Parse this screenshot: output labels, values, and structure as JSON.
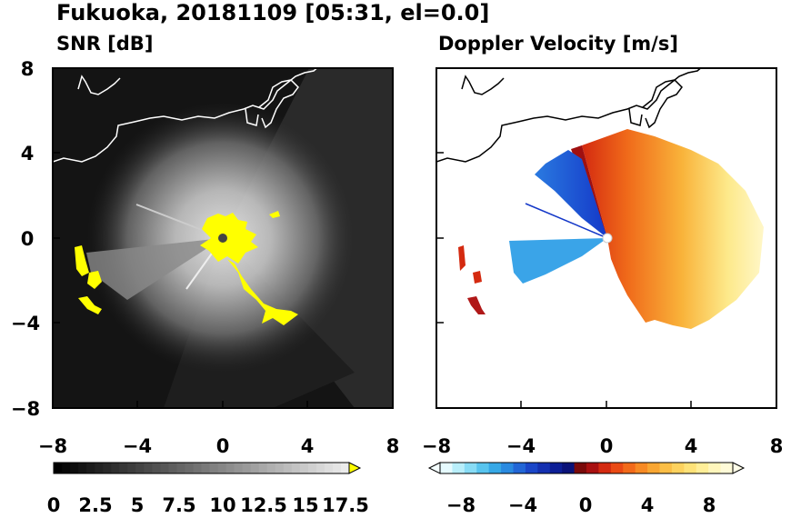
{
  "header": {
    "title": "Fukuoka, 20181109 [05:31, el=0.0]"
  },
  "panels": [
    {
      "title": "SNR [dB]"
    },
    {
      "title": "Doppler Velocity [m/s]"
    }
  ],
  "colors": {
    "background_left": "#111111",
    "coastline_left": "#ffffff",
    "coastline_right": "#000000",
    "snr_high": "#ffff00"
  },
  "chart_data": [
    {
      "type": "heatmap",
      "title": "SNR [dB]",
      "xlim": [
        -8,
        8
      ],
      "ylim": [
        -8,
        8
      ],
      "x_ticks": [
        "−8",
        "−4",
        "0",
        "4",
        "8"
      ],
      "y_ticks": [
        "8",
        "4",
        "0",
        "−4",
        "−8"
      ],
      "colorbar": {
        "range": [
          0,
          18
        ],
        "tick_labels": [
          "0",
          "2.5",
          "5",
          "7.5",
          "10",
          "12.5",
          "15",
          "17.5"
        ],
        "extend": "max",
        "colormap": "gray",
        "over_color": "#ffff00"
      }
    },
    {
      "type": "heatmap",
      "title": "Doppler Velocity [m/s]",
      "xlim": [
        -8,
        8
      ],
      "ylim": [
        -8,
        8
      ],
      "x_ticks": [
        "−8",
        "−4",
        "0",
        "4",
        "8"
      ],
      "y_ticks": [],
      "colorbar": {
        "range": [
          -10,
          10
        ],
        "tick_labels": [
          "−8",
          "−4",
          "0",
          "4",
          "8"
        ],
        "extend": "both",
        "colormap": "blue-white-red-yellow"
      }
    }
  ]
}
